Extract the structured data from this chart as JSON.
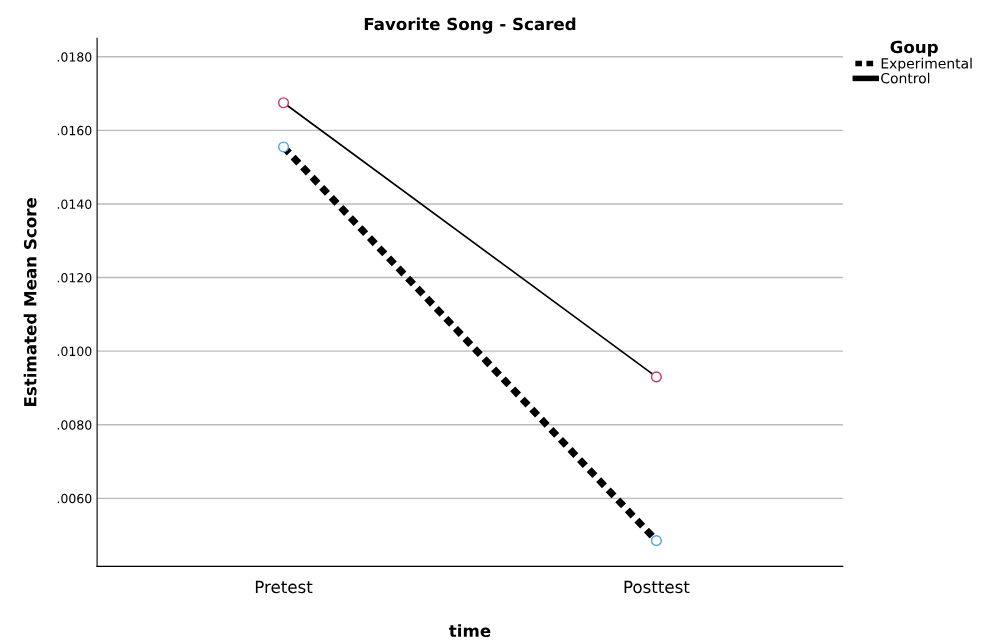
{
  "chart_data": {
    "type": "line",
    "title": "Favorite Song - Scared",
    "xlabel": "time",
    "ylabel": "Estimated Mean Score",
    "legend_title": "Goup",
    "categories": [
      "Pretest",
      "Posttest"
    ],
    "series": [
      {
        "name": "Experimental",
        "color": "#000000",
        "colors": [
          "#4aa8e0",
          "#4aa8e0"
        ],
        "line_style": "dashed",
        "values": [
          0.01555,
          0.00485
        ]
      },
      {
        "name": "Control",
        "color": "#000000",
        "colors": [
          "#c8386a",
          "#c8386a"
        ],
        "line_style": "solid",
        "values": [
          0.01675,
          0.0093
        ]
      }
    ],
    "ylim": [
      0.00415,
      0.0185
    ],
    "yticks": [
      {
        "value": 0.006,
        "label": ".0060"
      },
      {
        "value": 0.008,
        "label": ".0080"
      },
      {
        "value": 0.01,
        "label": ".0100"
      },
      {
        "value": 0.012,
        "label": ".0120"
      },
      {
        "value": 0.014,
        "label": ".0140"
      },
      {
        "value": 0.016,
        "label": ".0160"
      },
      {
        "value": 0.018,
        "label": ".0180"
      }
    ],
    "grid": "y",
    "legend": "top right",
    "marker": "circle"
  }
}
